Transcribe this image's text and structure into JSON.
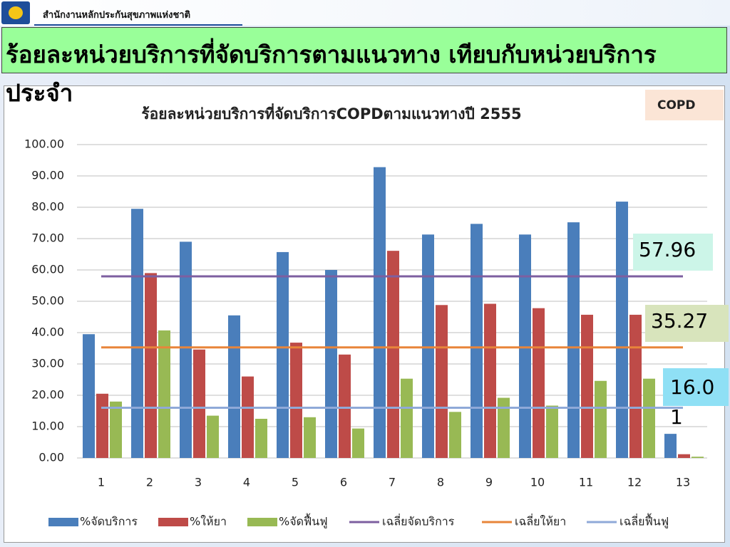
{
  "header": {
    "organization": "สำนักงานหลักประกันสุขภาพแห่งชาติ"
  },
  "slide_title": "ร้อยละหน่วยบริการที่จัดบริการตามแนวทาง เทียบกับหน่วยบริการประจำ",
  "chart_data": {
    "type": "bar",
    "title": "ร้อยละหน่วยบริการที่จัดบริการCOPDตามแนวทางปี 2555",
    "badge": "COPD",
    "categories": [
      "1",
      "2",
      "3",
      "4",
      "5",
      "6",
      "7",
      "8",
      "9",
      "10",
      "11",
      "12",
      "13"
    ],
    "ylim": [
      0,
      100
    ],
    "yticks": [
      {
        "value": 0,
        "label": "0.00"
      },
      {
        "value": 10,
        "label": "10.00"
      },
      {
        "value": 20,
        "label": "20.00"
      },
      {
        "value": 30,
        "label": "30.00"
      },
      {
        "value": 40,
        "label": "40.00"
      },
      {
        "value": 50,
        "label": "50.00"
      },
      {
        "value": 60,
        "label": "60.00"
      },
      {
        "value": 70,
        "label": "70.00"
      },
      {
        "value": 80,
        "label": "80.00"
      },
      {
        "value": 90,
        "label": "90.00"
      },
      {
        "value": 100,
        "label": "100.00"
      }
    ],
    "grid": true,
    "series": [
      {
        "name": "%จัดบริการ",
        "color": "#4a7ebb",
        "values": [
          39.5,
          79.5,
          69,
          45.5,
          65.7,
          60,
          92.8,
          71.3,
          74.7,
          71.3,
          75.2,
          81.8,
          7.7
        ]
      },
      {
        "name": "%ให้ยา",
        "color": "#be4b48",
        "values": [
          20.5,
          59,
          34.6,
          26,
          36.8,
          33,
          66.1,
          48.8,
          49.2,
          47.8,
          45.7,
          45.7,
          1.2
        ]
      },
      {
        "name": "%จัดฟื้นฟู",
        "color": "#98b954",
        "values": [
          18,
          40.7,
          13.5,
          12.5,
          13,
          9.4,
          25.3,
          14.7,
          19.2,
          16.7,
          24.6,
          25.3,
          0.4
        ]
      },
      {
        "name": "เฉลี่ยจัดบริการ",
        "color": "#7d5fa0",
        "type": "line",
        "value": 57.96
      },
      {
        "name": "เฉลี่ยให้ยา",
        "color": "#e8853a",
        "type": "line",
        "value": 35.27
      },
      {
        "name": "เฉลี่ยฟื้นฟู",
        "color": "#8fa9d8",
        "type": "line",
        "value": 16.01
      }
    ]
  }
}
